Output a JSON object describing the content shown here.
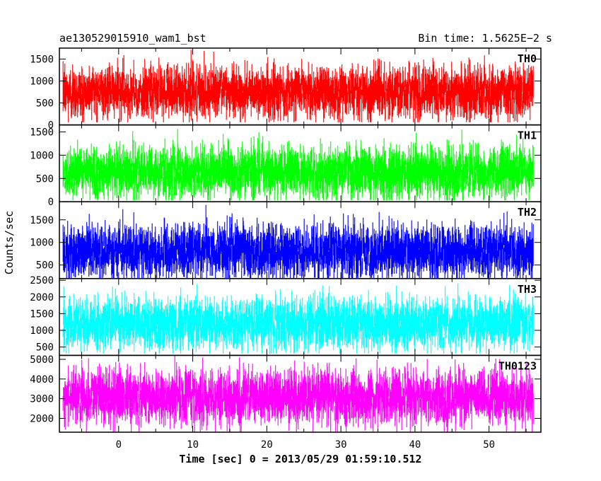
{
  "header": {
    "left_title": "ae130529015910_wam1_bst",
    "right_title": "Bin time: 1.5625E−2 s"
  },
  "chart_data": {
    "type": "line",
    "xlabel": "Time [sec] 0 = 2013/05/29 01:59:10.512",
    "ylabel": "Counts/sec",
    "xlim": [
      -8,
      57
    ],
    "x_range": [
      -7.5,
      56.0
    ],
    "bin_time_s": 0.015625,
    "x_ticks": [
      0,
      10,
      20,
      30,
      40,
      50
    ],
    "panels": [
      {
        "name": "TH0",
        "color": "#ff0000",
        "ylim": [
          0,
          1750
        ],
        "y_ticks": [
          0,
          500,
          1000,
          1500
        ],
        "mean": 750,
        "min": 60,
        "max": 1750
      },
      {
        "name": "TH1",
        "color": "#00ff00",
        "ylim": [
          0,
          1650
        ],
        "y_ticks": [
          0,
          500,
          1000,
          1500
        ],
        "mean": 640,
        "min": 30,
        "max": 1600
      },
      {
        "name": "TH2",
        "color": "#0000ff",
        "ylim": [
          200,
          1900
        ],
        "y_ticks": [
          500,
          1000,
          1500
        ],
        "mean": 800,
        "min": 200,
        "max": 1900
      },
      {
        "name": "TH3",
        "color": "#00ffff",
        "ylim": [
          250,
          2550
        ],
        "y_ticks": [
          500,
          1000,
          1500,
          2000,
          2500
        ],
        "mean": 1200,
        "min": 300,
        "max": 2500
      },
      {
        "name": "TH0123",
        "color": "#ff00ff",
        "ylim": [
          1300,
          5200
        ],
        "y_ticks": [
          2000,
          3000,
          4000,
          5000
        ],
        "mean": 3100,
        "min": 1300,
        "max": 5200
      }
    ]
  }
}
